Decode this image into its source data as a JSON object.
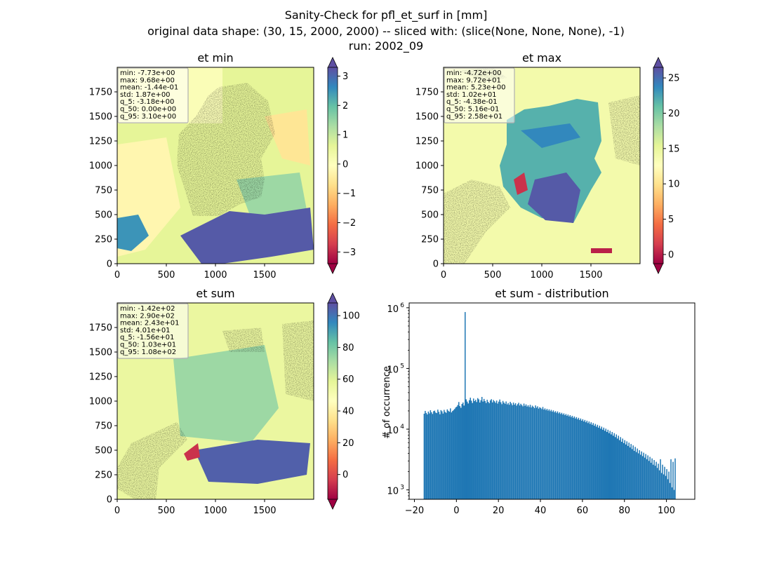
{
  "figure": {
    "suptitle_lines": [
      "Sanity-Check for pfl_et_surf in [mm]",
      "original data shape: (30, 15, 2000, 2000) -- sliced with: (slice(None, None, None), -1)",
      "run: 2002_09"
    ]
  },
  "chart_data": [
    {
      "type": "heatmap",
      "title": "et min",
      "xlabel": "",
      "ylabel": "",
      "xlim": [
        0,
        2000
      ],
      "ylim": [
        0,
        2000
      ],
      "xticks": [
        "0",
        "500",
        "1000",
        "1500"
      ],
      "yticks": [
        "0",
        "250",
        "500",
        "750",
        "1000",
        "1250",
        "1500",
        "1750"
      ],
      "colormap": "Spectral",
      "colorbar": {
        "range": [
          -3.4,
          3.3
        ],
        "ticks": [
          "−3",
          "−2",
          "−1",
          "0",
          "1",
          "2",
          "3"
        ],
        "extend": "both"
      },
      "stats_box": [
        "min: -7.73e+00",
        "max: 9.68e+00",
        "mean: -1.44e-01",
        "std: 1.87e+00",
        "q_5: -3.18e+00",
        "q_50: 0.00e+00",
        "q_95: 3.10e+00"
      ]
    },
    {
      "type": "heatmap",
      "title": "et max",
      "xlabel": "",
      "ylabel": "",
      "xlim": [
        0,
        2000
      ],
      "ylim": [
        0,
        2000
      ],
      "xticks": [
        "0",
        "500",
        "1000",
        "1500"
      ],
      "yticks": [
        "0",
        "250",
        "500",
        "750",
        "1000",
        "1250",
        "1500",
        "1750"
      ],
      "colormap": "Spectral",
      "colorbar": {
        "range": [
          -1.3,
          26.5
        ],
        "ticks": [
          "0",
          "5",
          "10",
          "15",
          "20",
          "25"
        ],
        "extend": "both"
      },
      "stats_box": [
        "min: -4.72e+00",
        "max: 9.72e+01",
        "mean: 5.23e+00",
        "std: 1.02e+01",
        "q_5: -4.38e-01",
        "q_50: 5.16e-01",
        "q_95: 2.58e+01"
      ]
    },
    {
      "type": "heatmap",
      "title": "et sum",
      "xlabel": "",
      "ylabel": "",
      "xlim": [
        0,
        2000
      ],
      "ylim": [
        0,
        2000
      ],
      "xticks": [
        "0",
        "500",
        "1000",
        "1500"
      ],
      "yticks": [
        "0",
        "250",
        "500",
        "750",
        "1000",
        "1250",
        "1500",
        "1750"
      ],
      "colormap": "Spectral",
      "colorbar": {
        "range": [
          -15.6,
          108
        ],
        "ticks": [
          "0",
          "20",
          "40",
          "60",
          "80",
          "100"
        ],
        "extend": "both"
      },
      "stats_box": [
        "min: -1.42e+02",
        "max: 2.90e+02",
        "mean: 2.43e+01",
        "std: 4.01e+01",
        "q_5: -1.56e+01",
        "q_50: 1.03e+01",
        "q_95: 1.08e+02"
      ]
    },
    {
      "type": "bar",
      "title": "et sum - distribution",
      "xlabel": "",
      "ylabel": "# of occurrence",
      "yscale": "log",
      "xlim": [
        -22.5,
        113.5
      ],
      "ylim": [
        700,
        1200000
      ],
      "xticks": [
        -20,
        0,
        20,
        40,
        60,
        80,
        100
      ],
      "xtick_labels": [
        "−20",
        "0",
        "20",
        "40",
        "60",
        "80",
        "100"
      ],
      "yticks": [
        1000,
        10000,
        100000,
        1000000
      ],
      "ytick_labels": [
        "10",
        "10",
        "10",
        "10"
      ],
      "ytick_exponents": [
        "3",
        "4",
        "5",
        "6"
      ],
      "bar_color": "#1f77b4",
      "bins": {
        "start": -15.6,
        "width": 0.5,
        "values": [
          18000,
          20000,
          18500,
          17500,
          19500,
          18200,
          20500,
          19000,
          17800,
          19800,
          20200,
          18800,
          18400,
          21000,
          19300,
          17600,
          20600,
          19700,
          18100,
          20800,
          19200,
          18600,
          21200,
          20100,
          19400,
          22000,
          18900,
          19900,
          20700,
          21500,
          22800,
          23500,
          25000,
          28000,
          24000,
          22500,
          26000,
          27500,
          24500,
          850000,
          31000,
          28500,
          26500,
          30000,
          33000,
          29500,
          27000,
          32000,
          29000,
          30500,
          28000,
          32500,
          31000,
          27500,
          30000,
          34000,
          28500,
          31500,
          29000,
          27000,
          30500,
          28200,
          26800,
          29800,
          31200,
          27600,
          30200,
          28800,
          27200,
          29600,
          26400,
          28400,
          30800,
          27800,
          25800,
          29200,
          27400,
          26200,
          28600,
          25600,
          27000,
          25200,
          28200,
          26600,
          24800,
          27400,
          25400,
          26800,
          24400,
          25800,
          27200,
          24600,
          26200,
          25000,
          23800,
          26400,
          24200,
          25600,
          23600,
          24800,
          23200,
          25200,
          22800,
          24400,
          23400,
          22200,
          24600,
          22600,
          23800,
          21800,
          23000,
          22400,
          21400,
          23200,
          21000,
          22000,
          20600,
          21600,
          20200,
          21200,
          19800,
          20800,
          19400,
          20400,
          19000,
          19800,
          18600,
          19600,
          18200,
          19000,
          17800,
          18600,
          17400,
          18200,
          17000,
          17800,
          16600,
          17400,
          16200,
          17000,
          15800,
          16600,
          15400,
          16200,
          15000,
          15800,
          14600,
          15400,
          14200,
          15000,
          13800,
          14600,
          13400,
          14200,
          13000,
          13800,
          12600,
          13400,
          12200,
          13000,
          11800,
          12600,
          11400,
          12200,
          11000,
          11800,
          10600,
          11400,
          10200,
          11000,
          9800,
          10600,
          9400,
          10200,
          9000,
          9800,
          8600,
          9400,
          8200,
          9000,
          7800,
          8600,
          7400,
          8200,
          7000,
          7800,
          6600,
          7400,
          6200,
          7000,
          5900,
          6600,
          5600,
          6300,
          5300,
          6000,
          5000,
          5700,
          4700,
          5400,
          4400,
          5100,
          4200,
          4800,
          4000,
          4500,
          3800,
          4300,
          3600,
          4100,
          3400,
          3900,
          3200,
          3700,
          3000,
          3500,
          2800,
          3300,
          2600,
          3100,
          2500,
          2900,
          2300,
          2700,
          2100,
          3200,
          1900,
          2600,
          1800,
          2400,
          1700,
          2200,
          1500,
          2000,
          1300,
          3200,
          1100,
          2900,
          1000,
          3300
        ]
      }
    }
  ]
}
